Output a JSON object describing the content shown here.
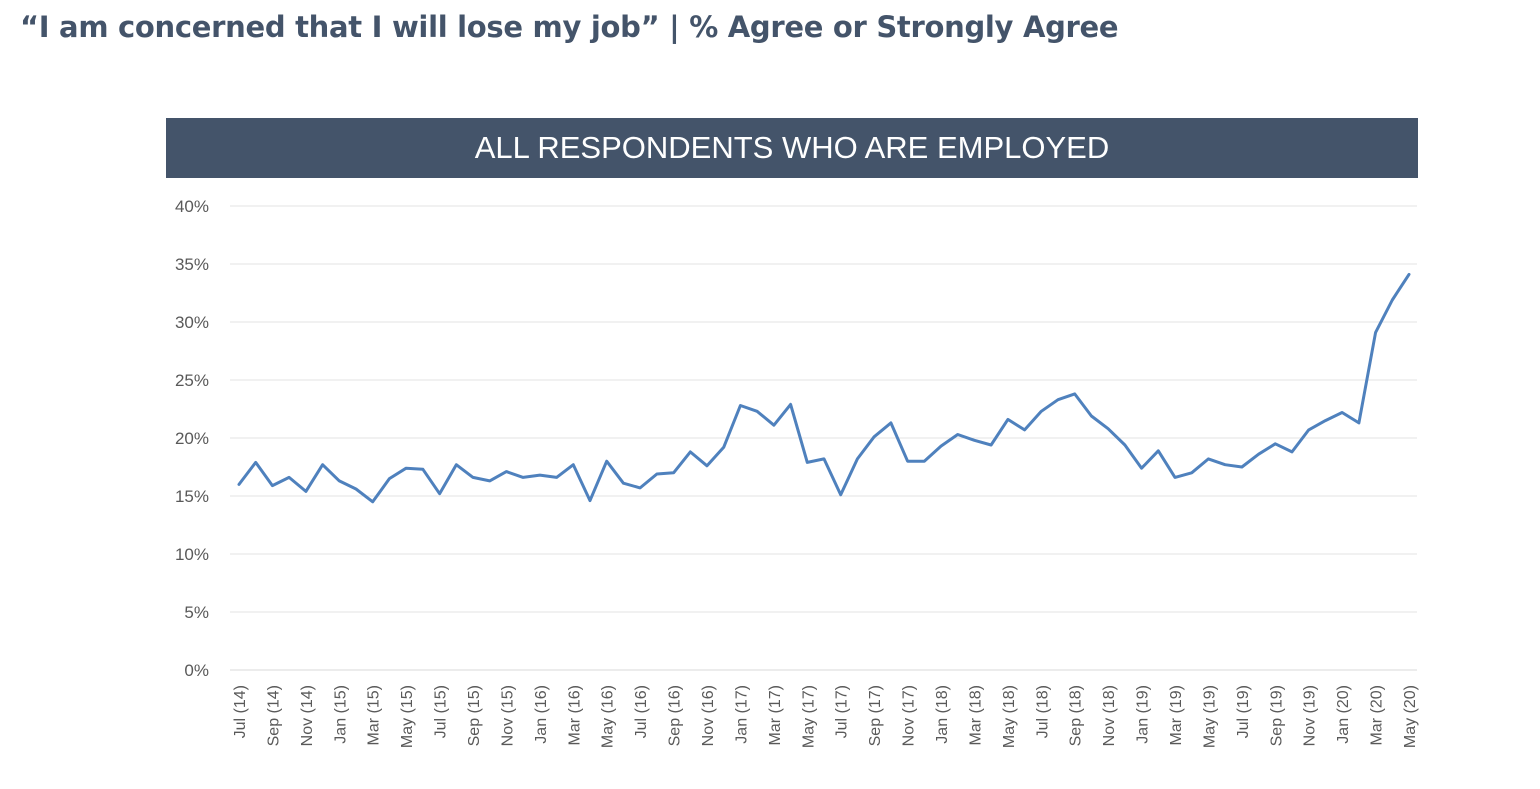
{
  "title": "“I am concerned that I will lose my job” | % Agree or Strongly Agree",
  "chart_data": {
    "type": "line",
    "title": "ALL RESPONDENTS WHO ARE EMPLOYED",
    "xlabel": "",
    "ylabel": "",
    "ylim": [
      0,
      40
    ],
    "y_ticks": [
      "0%",
      "5%",
      "10%",
      "15%",
      "20%",
      "25%",
      "30%",
      "35%",
      "40%"
    ],
    "grid": true,
    "legend": "none",
    "line_color": "#4f81bd",
    "x_tick_labels": [
      "Jul (14)",
      "Sep (14)",
      "Nov (14)",
      "Jan (15)",
      "Mar (15)",
      "May (15)",
      "Jul (15)",
      "Sep (15)",
      "Nov (15)",
      "Jan (16)",
      "Mar (16)",
      "May (16)",
      "Jul (16)",
      "Sep (16)",
      "Nov (16)",
      "Jan (17)",
      "Mar (17)",
      "May (17)",
      "Jul (17)",
      "Sep (17)",
      "Nov (17)",
      "Jan (18)",
      "Mar (18)",
      "May (18)",
      "Jul (18)",
      "Sep (18)",
      "Nov (18)",
      "Jan (19)",
      "Mar (19)",
      "May (19)",
      "Jul (19)",
      "Sep (19)",
      "Nov (19)",
      "Jan (20)",
      "Mar (20)",
      "May (20)"
    ],
    "x": [
      "Jul (14)",
      "Aug (14)",
      "Sep (14)",
      "Oct (14)",
      "Nov (14)",
      "Dec (14)",
      "Jan (15)",
      "Feb (15)",
      "Mar (15)",
      "Apr (15)",
      "May (15)",
      "Jun (15)",
      "Jul (15)",
      "Aug (15)",
      "Sep (15)",
      "Oct (15)",
      "Nov (15)",
      "Dec (15)",
      "Jan (16)",
      "Feb (16)",
      "Mar (16)",
      "Apr (16)",
      "May (16)",
      "Jun (16)",
      "Jul (16)",
      "Aug (16)",
      "Sep (16)",
      "Oct (16)",
      "Nov (16)",
      "Dec (16)",
      "Jan (17)",
      "Feb (17)",
      "Mar (17)",
      "Apr (17)",
      "May (17)",
      "Jun (17)",
      "Jul (17)",
      "Aug (17)",
      "Sep (17)",
      "Oct (17)",
      "Nov (17)",
      "Dec (17)",
      "Jan (18)",
      "Feb (18)",
      "Mar (18)",
      "Apr (18)",
      "May (18)",
      "Jun (18)",
      "Jul (18)",
      "Aug (18)",
      "Sep (18)",
      "Oct (18)",
      "Nov (18)",
      "Dec (18)",
      "Jan (19)",
      "Feb (19)",
      "Mar (19)",
      "Apr (19)",
      "May (19)",
      "Jun (19)",
      "Jul (19)",
      "Aug (19)",
      "Sep (19)",
      "Oct (19)",
      "Nov (19)",
      "Dec (19)",
      "Jan (20)",
      "Feb (20)",
      "Mar (20)",
      "Apr (20)",
      "May (20)"
    ],
    "values": [
      16.0,
      17.9,
      15.9,
      16.6,
      15.4,
      17.7,
      16.3,
      15.6,
      14.5,
      16.5,
      17.4,
      17.3,
      15.2,
      17.7,
      16.6,
      16.3,
      17.1,
      16.6,
      16.8,
      16.6,
      17.7,
      14.6,
      18.0,
      16.1,
      15.7,
      16.9,
      17.0,
      18.8,
      17.6,
      19.2,
      22.8,
      22.3,
      21.1,
      22.9,
      17.9,
      18.2,
      15.1,
      18.2,
      20.1,
      21.3,
      18.0,
      18.0,
      19.3,
      20.3,
      19.8,
      19.4,
      21.6,
      20.7,
      22.3,
      23.3,
      23.8,
      21.9,
      20.8,
      19.4,
      17.4,
      18.9,
      16.6,
      17.0,
      18.2,
      17.7,
      17.5,
      18.6,
      19.5,
      18.8,
      20.7,
      21.5,
      22.2,
      21.3,
      29.1,
      31.9,
      34.1
    ]
  }
}
